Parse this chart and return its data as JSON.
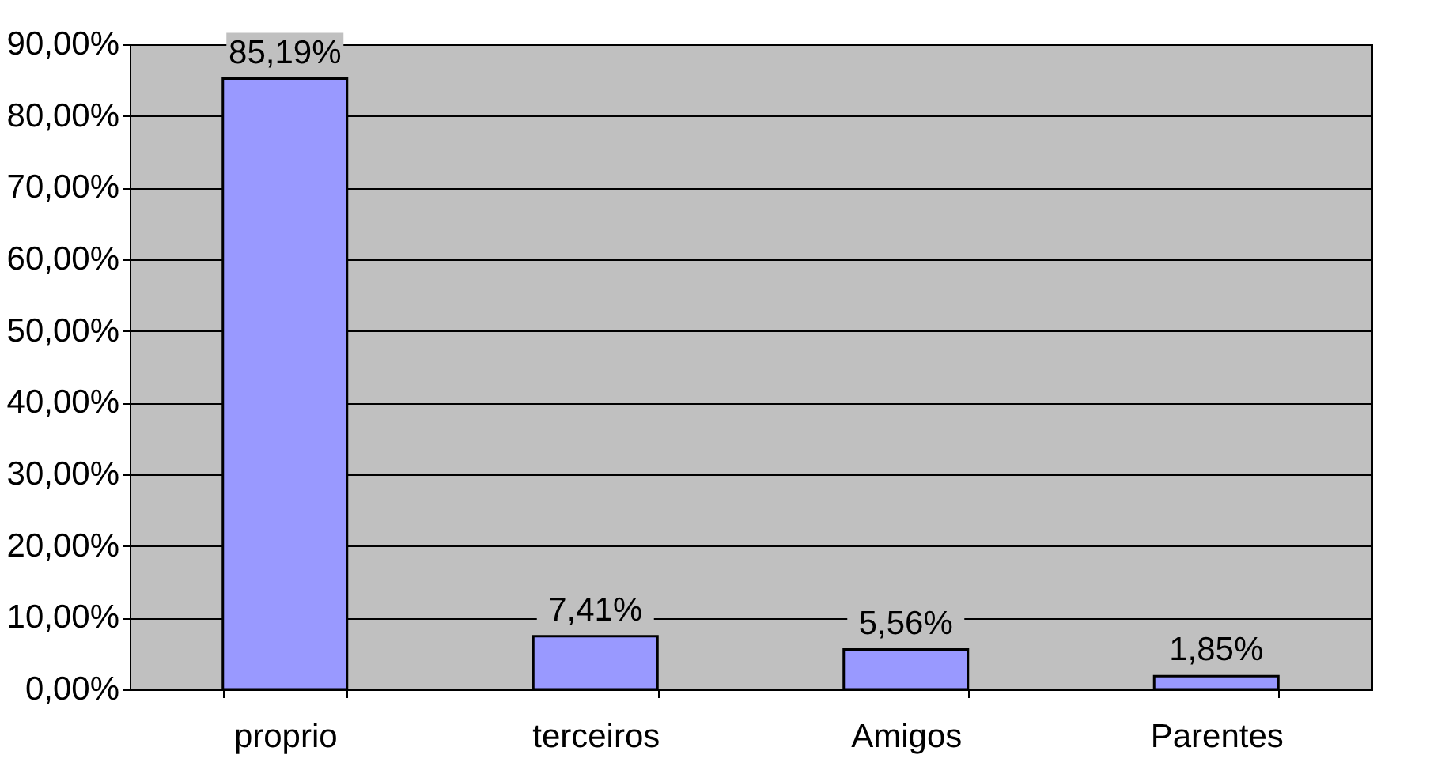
{
  "chart_data": {
    "type": "bar",
    "categories": [
      "proprio",
      "terceiros",
      "Amigos",
      "Parentes"
    ],
    "values": [
      85.19,
      7.41,
      5.56,
      1.85
    ],
    "value_labels": [
      "85,19%",
      "7,41%",
      "5,56%",
      "1,85%"
    ],
    "color": "#9999ff",
    "ylim": [
      0,
      90
    ],
    "yticks": [
      {
        "value": 0,
        "label": "0,00%"
      },
      {
        "value": 10,
        "label": "10,00%"
      },
      {
        "value": 20,
        "label": "20,00%"
      },
      {
        "value": 30,
        "label": "30,00%"
      },
      {
        "value": 40,
        "label": "40,00%"
      },
      {
        "value": 50,
        "label": "50,00%"
      },
      {
        "value": 60,
        "label": "60,00%"
      },
      {
        "value": 70,
        "label": "70,00%"
      },
      {
        "value": 80,
        "label": "80,00%"
      },
      {
        "value": 90,
        "label": "90,00%"
      }
    ],
    "grid": "y"
  }
}
